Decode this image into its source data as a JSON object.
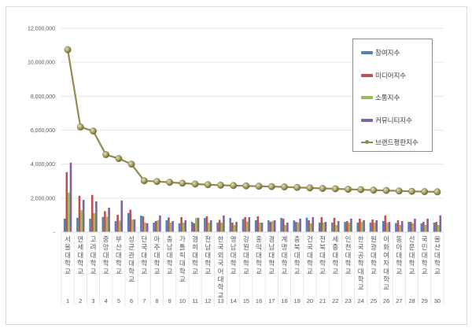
{
  "chart_data": {
    "type": "bar",
    "title": "",
    "xlabel": "",
    "ylabel": "",
    "ylim": [
      0,
      12000000
    ],
    "y_ticks": [
      "-",
      "2,000,000",
      "4,000,000",
      "6,000,000",
      "8,000,000",
      "10,000,000",
      "12,000,000"
    ],
    "grid": true,
    "legend_position": "upper right (inside)",
    "categories": [
      "서울대학교",
      "연세대학교",
      "고려대학교",
      "중앙대학교",
      "부산대학교",
      "성균관대학교",
      "단국대학교",
      "아주대학교",
      "충남대학교",
      "가톨릭대학교",
      "경희대학교",
      "전남대학교",
      "한국외국어대학교",
      "영남대학교",
      "강원대학교",
      "홍익대학교",
      "경남대학교",
      "계명대학교",
      "충북대학교",
      "건국대학교",
      "전북대학교",
      "세종대학교",
      "인천대학교",
      "한국공학대학교",
      "원광대학교",
      "이화여자대학교",
      "동아대학교",
      "선문대학교",
      "국민대학교",
      "울산대학교"
    ],
    "ranks": [
      "1",
      "2",
      "3",
      "4",
      "5",
      "6",
      "7",
      "8",
      "9",
      "10",
      "11",
      "12",
      "13",
      "14",
      "15",
      "16",
      "17",
      "18",
      "19",
      "20",
      "21",
      "22",
      "23",
      "24",
      "25",
      "26",
      "27",
      "28",
      "29",
      "30"
    ],
    "series": [
      {
        "name": "참여지수",
        "kind": "bar",
        "color": "#4f81bd",
        "values": [
          790000,
          840000,
          790000,
          900000,
          650000,
          1120000,
          970000,
          560000,
          700000,
          520000,
          600000,
          830000,
          560000,
          830000,
          770000,
          700000,
          700000,
          840000,
          700000,
          850000,
          560000,
          560000,
          600000,
          560000,
          560000,
          650000,
          530000,
          600000,
          520000,
          560000
        ]
      },
      {
        "name": "미디어지수",
        "kind": "bar",
        "color": "#c0504d",
        "values": [
          3530000,
          2140000,
          2190000,
          1230000,
          1020000,
          1320000,
          930000,
          650000,
          860000,
          880000,
          520000,
          930000,
          720000,
          560000,
          880000,
          930000,
          600000,
          790000,
          600000,
          700000,
          880000,
          840000,
          650000,
          790000,
          740000,
          980000,
          700000,
          600000,
          600000,
          600000
        ]
      },
      {
        "name": "소통지수",
        "kind": "bar",
        "color": "#9bbb59",
        "values": [
          2330000,
          1300000,
          1120000,
          910000,
          680000,
          740000,
          560000,
          700000,
          560000,
          560000,
          840000,
          560000,
          560000,
          420000,
          620000,
          560000,
          650000,
          420000,
          560000,
          520000,
          560000,
          420000,
          560000,
          600000,
          560000,
          560000,
          420000,
          520000,
          420000,
          420000
        ]
      },
      {
        "name": "커뮤니티지수",
        "kind": "bar",
        "color": "#8064a2",
        "values": [
          4090000,
          1900000,
          1810000,
          1440000,
          1860000,
          750000,
          520000,
          980000,
          650000,
          700000,
          840000,
          700000,
          980000,
          600000,
          880000,
          560000,
          700000,
          560000,
          790000,
          880000,
          600000,
          650000,
          790000,
          700000,
          700000,
          600000,
          650000,
          790000,
          790000,
          980000
        ]
      },
      {
        "name": "브랜드평판지수",
        "kind": "line",
        "color": "#938953",
        "values": [
          10740000,
          6190000,
          5950000,
          4560000,
          4330000,
          4000000,
          3020000,
          2980000,
          2930000,
          2880000,
          2830000,
          2790000,
          2760000,
          2740000,
          2720000,
          2700000,
          2680000,
          2660000,
          2630000,
          2600000,
          2570000,
          2550000,
          2520000,
          2500000,
          2470000,
          2450000,
          2420000,
          2400000,
          2380000,
          2370000
        ]
      }
    ]
  }
}
